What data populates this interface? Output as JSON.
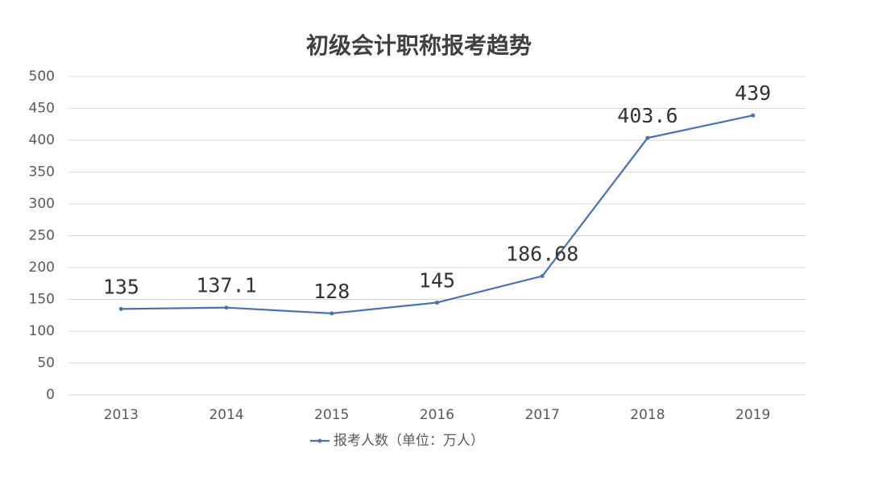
{
  "chart_data": {
    "type": "line",
    "title": "初级会计职称报考趋势",
    "categories": [
      "2013",
      "2014",
      "2015",
      "2016",
      "2017",
      "2018",
      "2019"
    ],
    "series": [
      {
        "name": "报考人数（单位：万人）",
        "color": "#4a72b0",
        "values": [
          135,
          137.1,
          128,
          145,
          186.68,
          403.6,
          439
        ]
      }
    ],
    "ylim": [
      0,
      500
    ],
    "yticks": [
      0,
      50,
      100,
      150,
      200,
      250,
      300,
      350,
      400,
      450,
      500
    ],
    "grid": true,
    "legend": "bottom"
  }
}
